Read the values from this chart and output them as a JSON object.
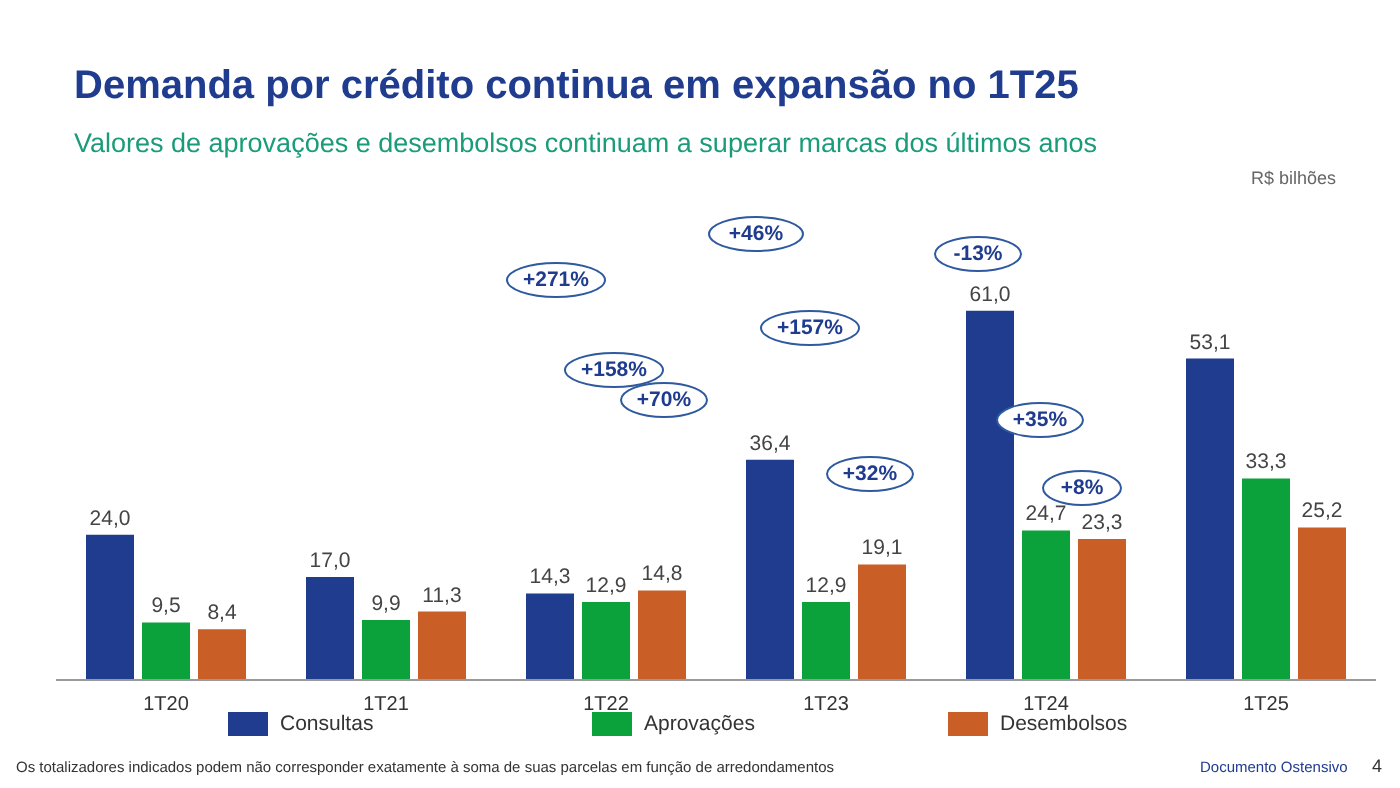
{
  "chart_data": {
    "type": "bar",
    "title": "Demanda por crédito continua em expansão no 1T25",
    "subtitle": "Valores de aprovações e desembolsos continuam a superar marcas dos últimos anos",
    "categories": [
      "1T20",
      "1T21",
      "1T22",
      "1T23",
      "1T24",
      "1T25"
    ],
    "series": [
      {
        "name": "Consultas",
        "color": "#1f3c8f",
        "values": [
          24.0,
          17.0,
          14.3,
          36.4,
          61.0,
          53.1
        ],
        "value_labels": [
          "24,0",
          "17,0",
          "14,3",
          "36,4",
          "61,0",
          "53,1"
        ]
      },
      {
        "name": "Aprovações",
        "color": "#0ba23c",
        "values": [
          9.5,
          9.9,
          12.9,
          12.9,
          24.7,
          33.3
        ],
        "value_labels": [
          "9,5",
          "9,9",
          "12,9",
          "12,9",
          "24,7",
          "33,3"
        ]
      },
      {
        "name": "Desembolsos",
        "color": "#c95e26",
        "values": [
          8.4,
          11.3,
          14.8,
          19.1,
          23.3,
          25.2
        ],
        "value_labels": [
          "8,4",
          "11,3",
          "14,8",
          "19,1",
          "23,3",
          "25,2"
        ]
      }
    ],
    "legend": "bottom",
    "grid": false,
    "annotations": [
      "+46%",
      "-13%",
      "+271%",
      "+157%",
      "+158%",
      "+70%",
      "+35%",
      "+32%",
      "+8%",
      "Os totalizadores indicados podem não corresponder exatamente à soma de suas parcelas em função de arredondamentos",
      "Documento Ostensivo",
      "4",
      "R$ bilhões"
    ]
  }
}
